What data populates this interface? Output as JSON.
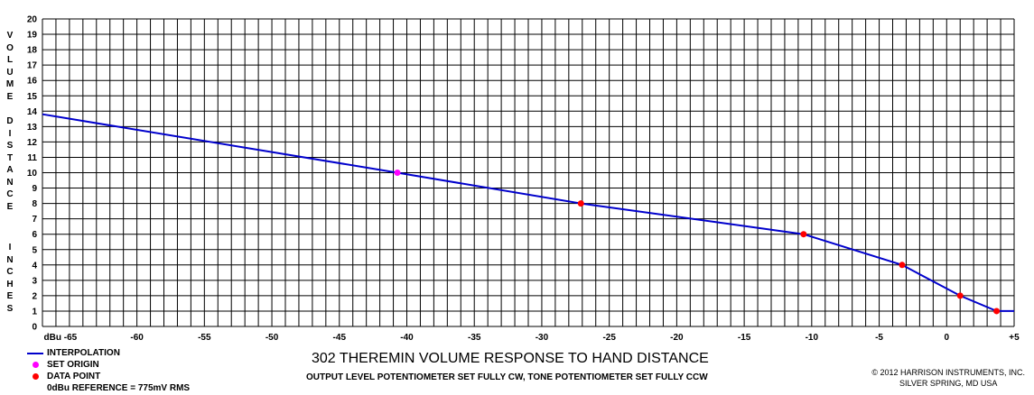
{
  "chart_data": {
    "type": "line",
    "title": "302 THEREMIN VOLUME RESPONSE TO HAND DISTANCE",
    "subtitle": "OUTPUT LEVEL POTENTIOMETER SET FULLY CW, TONE POTENTIOMETER SET FULLY CCW",
    "ylabel": "VOLUME DISTANCE INCHES",
    "xlim": [
      -67,
      5
    ],
    "ylim": [
      0,
      20
    ],
    "x_ticks": [
      -65,
      -60,
      -55,
      -50,
      -45,
      -40,
      -35,
      -30,
      -25,
      -20,
      -15,
      -10,
      -5,
      0,
      5
    ],
    "x_tick_labels": [
      "dBu -65",
      "-60",
      "-55",
      "-50",
      "-45",
      "-40",
      "-35",
      "-30",
      "-25",
      "-20",
      "-15",
      "-10",
      "-5",
      "0",
      "+5"
    ],
    "y_ticks": [
      0,
      1,
      2,
      3,
      4,
      5,
      6,
      7,
      8,
      9,
      10,
      11,
      12,
      13,
      14,
      15,
      16,
      17,
      18,
      19,
      20
    ],
    "grid": true,
    "series": [
      {
        "name": "INTERPOLATION",
        "kind": "line",
        "color": "#0000cc",
        "points": [
          [
            -67,
            13.8
          ],
          [
            -40.7,
            10
          ],
          [
            -27.1,
            8
          ],
          [
            -10.6,
            6
          ],
          [
            -3.3,
            4
          ],
          [
            1.0,
            2
          ],
          [
            3.7,
            1
          ],
          [
            5,
            1
          ]
        ]
      },
      {
        "name": "SET ORIGIN",
        "kind": "marker",
        "color": "#ff00ff",
        "points": [
          [
            -40.7,
            10
          ]
        ]
      },
      {
        "name": "DATA POINT",
        "kind": "marker",
        "color": "#ff0000",
        "points": [
          [
            -27.1,
            8
          ],
          [
            -10.6,
            6
          ],
          [
            -3.3,
            4
          ],
          [
            1.0,
            2
          ],
          [
            3.7,
            1
          ]
        ]
      }
    ]
  },
  "ylabel_words": [
    "VOLUME",
    "DISTANCE",
    "INCHES"
  ],
  "legend": {
    "interpolation": "INTERPOLATION",
    "set_origin": "SET ORIGIN",
    "data_point": "DATA POINT",
    "reference": "0dBu REFERENCE = 775mV RMS"
  },
  "credit": {
    "line1": "© 2012  HARRISON INSTRUMENTS, INC.",
    "line2": "SILVER SPRING, MD USA"
  },
  "colors": {
    "grid": "#000000",
    "line": "#0000cc",
    "origin": "#ff00ff",
    "data": "#ff0000"
  }
}
